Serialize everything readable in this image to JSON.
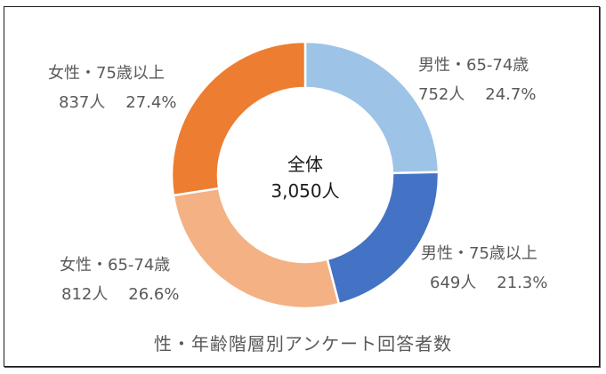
{
  "chart_data": {
    "type": "pie",
    "subtype": "donut",
    "title": "性・年齢階層別アンケート回答者数",
    "center_label": {
      "line1": "全体",
      "line2": "3,050人"
    },
    "total": 3050,
    "categories": [
      "男性・65-74歳",
      "男性・75歳以上",
      "女性・65-74歳",
      "女性・75歳以上"
    ],
    "values": [
      752,
      649,
      812,
      837
    ],
    "percentages": [
      24.7,
      21.3,
      26.6,
      27.4
    ],
    "colors": [
      "#9DC3E6",
      "#4472C4",
      "#F4B183",
      "#ED7D31"
    ],
    "legend": "none (data labels outside ring)"
  },
  "labels": [
    {
      "name": "男性・65-74歳",
      "count": "752人",
      "pct": "24.7%"
    },
    {
      "name": "男性・75歳以上",
      "count": "649人",
      "pct": "21.3%"
    },
    {
      "name": "女性・65-74歳",
      "count": "812人",
      "pct": "26.6%"
    },
    {
      "name": "女性・75歳以上",
      "count": "837人",
      "pct": "27.4%"
    }
  ]
}
